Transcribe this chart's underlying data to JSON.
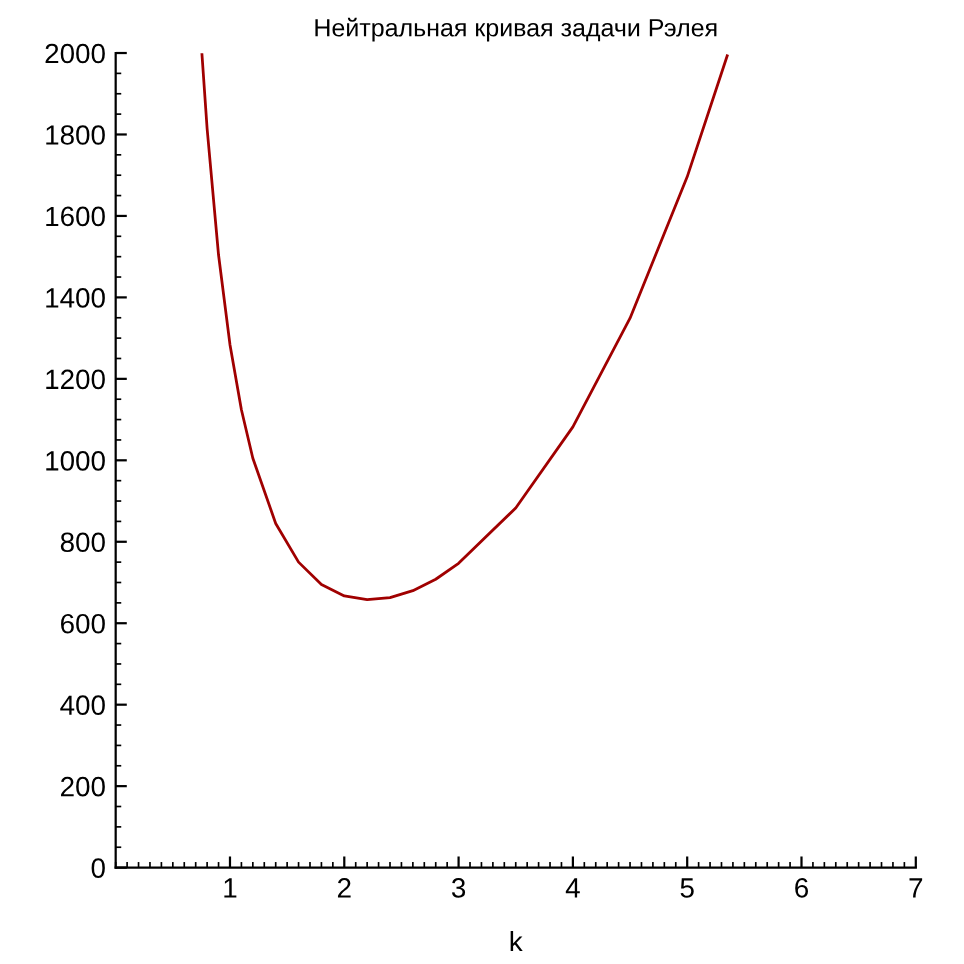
{
  "chart_data": {
    "type": "line",
    "title": "Нейтральная кривая задачи Рэлея",
    "xlabel": "k",
    "series": [
      {
        "color": "#a00000",
        "x": [
          0.755,
          0.8,
          0.9,
          1.0,
          1.1,
          1.2,
          1.4,
          1.6,
          1.8,
          2.0,
          2.2,
          2.4,
          2.6,
          2.8,
          3.0,
          3.5,
          4.0,
          4.5,
          5.0,
          5.35
        ],
        "values": [
          1996,
          1814,
          1504,
          1284,
          1124,
          1005,
          845,
          750,
          695,
          667,
          658,
          663,
          680,
          708,
          747,
          883,
          1082,
          1349,
          1696,
          1993
        ]
      }
    ],
    "xlim": [
      0,
      7
    ],
    "ylim": [
      0,
      2000
    ],
    "xticks": [
      1,
      2,
      3,
      4,
      5,
      6,
      7
    ],
    "yticks": [
      0,
      200,
      400,
      600,
      800,
      1000,
      1200,
      1400,
      1600,
      1800,
      2000
    ],
    "grid": false,
    "legend": false,
    "marker": "none",
    "line_style": "solid"
  }
}
